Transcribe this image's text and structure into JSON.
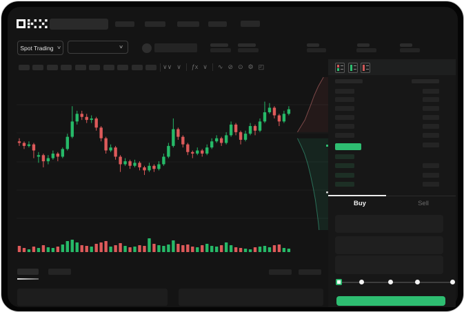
{
  "app": {
    "brand": "OKX"
  },
  "header": {
    "market_mode": "Spot Trading"
  },
  "icons": {
    "chevron_down": "∨"
  },
  "chart_toolbar_icons": [
    {
      "name": "candle-style-icon",
      "glyph": "∨∨"
    },
    {
      "name": "chevron-down-icon",
      "glyph": "∨"
    },
    {
      "name": "divider",
      "glyph": ""
    },
    {
      "name": "indicators-icon",
      "glyph": "ƒx"
    },
    {
      "name": "chevron-down-icon",
      "glyph": "∨"
    },
    {
      "name": "divider",
      "glyph": ""
    },
    {
      "name": "line-tool-icon",
      "glyph": "∿"
    },
    {
      "name": "eraser-icon",
      "glyph": "⊘"
    },
    {
      "name": "snapshot-icon",
      "glyph": "⊙"
    },
    {
      "name": "chart-settings-icon",
      "glyph": "⚙"
    },
    {
      "name": "fullscreen-icon",
      "glyph": "◰"
    }
  ],
  "order_panel": {
    "buy_tab": "Buy",
    "sell_tab": "Sell"
  },
  "chart_data": {
    "type": "candlestick",
    "title": "",
    "grid": true,
    "ylim": [
      0,
      100
    ],
    "colors": {
      "up": "#26b968",
      "down": "#dd5a5a",
      "price_highlight": "#2ebd71"
    },
    "candles": [
      [
        58,
        60,
        55,
        57
      ],
      [
        57,
        58,
        53,
        55
      ],
      [
        55,
        58,
        54,
        56
      ],
      [
        56,
        57,
        47,
        52
      ],
      [
        48,
        51,
        44,
        49
      ],
      [
        49,
        50,
        41,
        45
      ],
      [
        45,
        49,
        43,
        47
      ],
      [
        47,
        52,
        46,
        50
      ],
      [
        50,
        51,
        45,
        48
      ],
      [
        48,
        54,
        47,
        53
      ],
      [
        53,
        63,
        52,
        61
      ],
      [
        61,
        81,
        60,
        71
      ],
      [
        71,
        78,
        69,
        76
      ],
      [
        76,
        78,
        72,
        74
      ],
      [
        74,
        76,
        70,
        72
      ],
      [
        72,
        75,
        70,
        73
      ],
      [
        73,
        74,
        65,
        67
      ],
      [
        67,
        68,
        58,
        60
      ],
      [
        60,
        61,
        50,
        52
      ],
      [
        52,
        56,
        51,
        54
      ],
      [
        54,
        55,
        46,
        48
      ],
      [
        48,
        49,
        38,
        43
      ],
      [
        43,
        47,
        42,
        45
      ],
      [
        45,
        46,
        40,
        42
      ],
      [
        42,
        46,
        41,
        44
      ],
      [
        44,
        45,
        39,
        41
      ],
      [
        41,
        42,
        36,
        39
      ],
      [
        39,
        44,
        38,
        42
      ],
      [
        42,
        43,
        38,
        40
      ],
      [
        40,
        45,
        39,
        43
      ],
      [
        43,
        50,
        42,
        48
      ],
      [
        48,
        57,
        47,
        55
      ],
      [
        55,
        73,
        54,
        66
      ],
      [
        66,
        67,
        59,
        61
      ],
      [
        61,
        62,
        54,
        56
      ],
      [
        56,
        57,
        49,
        51
      ],
      [
        51,
        52,
        47,
        50
      ],
      [
        50,
        54,
        49,
        52
      ],
      [
        52,
        53,
        48,
        50
      ],
      [
        50,
        56,
        49,
        54
      ],
      [
        54,
        60,
        53,
        58
      ],
      [
        58,
        62,
        57,
        60
      ],
      [
        60,
        61,
        55,
        57
      ],
      [
        57,
        64,
        56,
        62
      ],
      [
        62,
        71,
        61,
        69
      ],
      [
        69,
        70,
        62,
        64
      ],
      [
        64,
        65,
        56,
        59
      ],
      [
        59,
        65,
        58,
        63
      ],
      [
        63,
        70,
        62,
        68
      ],
      [
        68,
        69,
        62,
        65
      ],
      [
        65,
        73,
        64,
        71
      ],
      [
        71,
        84,
        70,
        77
      ],
      [
        77,
        83,
        76,
        80
      ],
      [
        80,
        81,
        73,
        75
      ],
      [
        75,
        76,
        68,
        71
      ],
      [
        71,
        78,
        70,
        76
      ],
      [
        76,
        81,
        75,
        79
      ]
    ],
    "volumes": [
      0.45,
      0.3,
      0.2,
      0.4,
      0.3,
      0.5,
      0.35,
      0.3,
      0.4,
      0.55,
      0.8,
      0.9,
      0.7,
      0.5,
      0.45,
      0.4,
      0.6,
      0.7,
      0.8,
      0.4,
      0.5,
      0.65,
      0.45,
      0.35,
      0.4,
      0.5,
      0.45,
      1.0,
      0.6,
      0.5,
      0.45,
      0.55,
      0.85,
      0.6,
      0.5,
      0.55,
      0.4,
      0.35,
      0.5,
      0.6,
      0.45,
      0.4,
      0.5,
      0.7,
      0.5,
      0.35,
      0.3,
      0.25,
      0.2,
      0.35,
      0.4,
      0.45,
      0.35,
      0.5,
      0.55,
      0.3,
      0.25
    ],
    "depth": {
      "asks": [
        [
          0.8,
          0.0
        ],
        [
          0.66,
          0.06
        ],
        [
          0.55,
          0.12
        ],
        [
          0.46,
          0.18
        ],
        [
          0.38,
          0.23
        ],
        [
          0.3,
          0.28
        ],
        [
          0.2,
          0.32
        ],
        [
          0.1,
          0.36
        ]
      ],
      "bids": [
        [
          0.1,
          0.4
        ],
        [
          0.2,
          0.45
        ],
        [
          0.29,
          0.5
        ],
        [
          0.38,
          0.57
        ],
        [
          0.45,
          0.64
        ],
        [
          0.52,
          0.72
        ],
        [
          0.58,
          0.8
        ],
        [
          0.63,
          0.89
        ],
        [
          0.67,
          0.97
        ],
        [
          0.68,
          1.0
        ]
      ]
    }
  }
}
